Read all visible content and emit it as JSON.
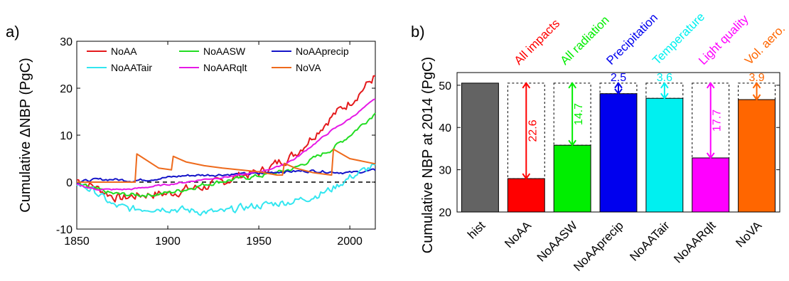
{
  "chart_data": [
    {
      "type": "line",
      "panel_label": "a)",
      "ylabel": "Cumulative ΔNBP (PgC)",
      "xlim": [
        1850,
        2014
      ],
      "ylim": [
        -10,
        30
      ],
      "xticks": [
        "1850",
        "1900",
        "1950",
        "2000"
      ],
      "yticks": [
        "-10",
        "0",
        "10",
        "20",
        "30"
      ],
      "zero_line": "dashed",
      "legend_position": "top",
      "series": [
        {
          "name": "NoAA",
          "color": "#e41a1c",
          "noise": 0.9,
          "points": [
            [
              1850,
              0.5
            ],
            [
              1860,
              -1
            ],
            [
              1870,
              -3
            ],
            [
              1875,
              -3.5
            ],
            [
              1880,
              -3
            ],
            [
              1890,
              -2.5
            ],
            [
              1900,
              -2.5
            ],
            [
              1910,
              -1.5
            ],
            [
              1920,
              -1
            ],
            [
              1930,
              0
            ],
            [
              1940,
              1.5
            ],
            [
              1950,
              2
            ],
            [
              1960,
              4
            ],
            [
              1970,
              6
            ],
            [
              1980,
              10
            ],
            [
              1990,
              14
            ],
            [
              2000,
              17
            ],
            [
              2005,
              19
            ],
            [
              2014,
              22.6
            ]
          ]
        },
        {
          "name": "NoAASW",
          "color": "#22dd22",
          "noise": 0.4,
          "points": [
            [
              1850,
              -0.5
            ],
            [
              1860,
              -1.5
            ],
            [
              1870,
              -2.5
            ],
            [
              1880,
              -2.7
            ],
            [
              1890,
              -2.7
            ],
            [
              1900,
              -2.3
            ],
            [
              1910,
              -1.5
            ],
            [
              1920,
              -0.5
            ],
            [
              1930,
              0.2
            ],
            [
              1940,
              0.8
            ],
            [
              1950,
              1.3
            ],
            [
              1960,
              2
            ],
            [
              1970,
              3
            ],
            [
              1980,
              5
            ],
            [
              1990,
              7
            ],
            [
              2000,
              10
            ],
            [
              2014,
              14.7
            ]
          ]
        },
        {
          "name": "NoAAprecip",
          "color": "#1414c8",
          "noise": 0.25,
          "points": [
            [
              1850,
              0
            ],
            [
              1860,
              0.5
            ],
            [
              1870,
              0.6
            ],
            [
              1880,
              0.3
            ],
            [
              1890,
              0.6
            ],
            [
              1900,
              1
            ],
            [
              1910,
              1.4
            ],
            [
              1920,
              1.5
            ],
            [
              1930,
              1.6
            ],
            [
              1940,
              1.7
            ],
            [
              1950,
              1.8
            ],
            [
              1960,
              2.2
            ],
            [
              1970,
              2.3
            ],
            [
              1980,
              2.4
            ],
            [
              1990,
              2.2
            ],
            [
              2000,
              2
            ],
            [
              2014,
              2.5
            ]
          ]
        },
        {
          "name": "NoAATair",
          "color": "#33e6f0",
          "noise": 0.7,
          "points": [
            [
              1850,
              -0.3
            ],
            [
              1860,
              -2
            ],
            [
              1870,
              -5
            ],
            [
              1880,
              -5.8
            ],
            [
              1890,
              -5.5
            ],
            [
              1900,
              -5.5
            ],
            [
              1910,
              -6
            ],
            [
              1920,
              -6.3
            ],
            [
              1930,
              -6.5
            ],
            [
              1940,
              -5.5
            ],
            [
              1950,
              -5
            ],
            [
              1960,
              -4.5
            ],
            [
              1970,
              -4
            ],
            [
              1980,
              -3
            ],
            [
              1990,
              -1.5
            ],
            [
              2000,
              1
            ],
            [
              2014,
              3.6
            ]
          ]
        },
        {
          "name": "NoAARqlt",
          "color": "#e619e6",
          "noise": 0.15,
          "points": [
            [
              1850,
              -0.5
            ],
            [
              1860,
              -1.5
            ],
            [
              1870,
              -1.6
            ],
            [
              1880,
              -1.5
            ],
            [
              1890,
              -1
            ],
            [
              1900,
              -0.5
            ],
            [
              1910,
              0
            ],
            [
              1920,
              0.6
            ],
            [
              1930,
              1
            ],
            [
              1940,
              1.5
            ],
            [
              1950,
              2.2
            ],
            [
              1960,
              3.2
            ],
            [
              1970,
              5
            ],
            [
              1980,
              8
            ],
            [
              1990,
              11
            ],
            [
              2000,
              13.5
            ],
            [
              2014,
              17.7
            ]
          ]
        },
        {
          "name": "NoVA",
          "color": "#ee6a1c",
          "noise": 0,
          "points": [
            [
              1850,
              0
            ],
            [
              1882,
              0
            ],
            [
              1883,
              6
            ],
            [
              1895,
              3
            ],
            [
              1902,
              2.6
            ],
            [
              1903,
              5.5
            ],
            [
              1910,
              4.3
            ],
            [
              1920,
              3.5
            ],
            [
              1930,
              3
            ],
            [
              1950,
              2.2
            ],
            [
              1960,
              1.5
            ],
            [
              1963,
              1.5
            ],
            [
              1964,
              4
            ],
            [
              1970,
              3
            ],
            [
              1980,
              2
            ],
            [
              1990,
              1.5
            ],
            [
              1991,
              7
            ],
            [
              2000,
              5
            ],
            [
              2014,
              3.9
            ]
          ]
        }
      ]
    },
    {
      "type": "bar",
      "panel_label": "b)",
      "ylabel": "Cumulative NBP at 2014 (PgC)",
      "ylim": [
        20,
        53
      ],
      "yticks": [
        "20",
        "30",
        "40",
        "50"
      ],
      "categories": [
        "hist",
        "NoAA",
        "NoAASW",
        "NoAAprecip",
        "NoAATair",
        "NoAARqlt",
        "NoVA"
      ],
      "values": [
        50.5,
        27.9,
        35.8,
        48.0,
        46.9,
        32.8,
        46.6
      ],
      "colors": [
        "#636363",
        "#ff0000",
        "#00ee00",
        "#0000ee",
        "#00f0f0",
        "#ff00ff",
        "#ff6600"
      ],
      "group_labels": [
        "",
        "All impacts",
        "All radiation",
        "Precipitation",
        "Temperature",
        "Light quality",
        "Vol. aero."
      ],
      "delta_labels": [
        "",
        "22.6",
        "14.7",
        "2.5",
        "3.6",
        "17.7",
        "3.9"
      ],
      "reference": 50.5
    }
  ]
}
